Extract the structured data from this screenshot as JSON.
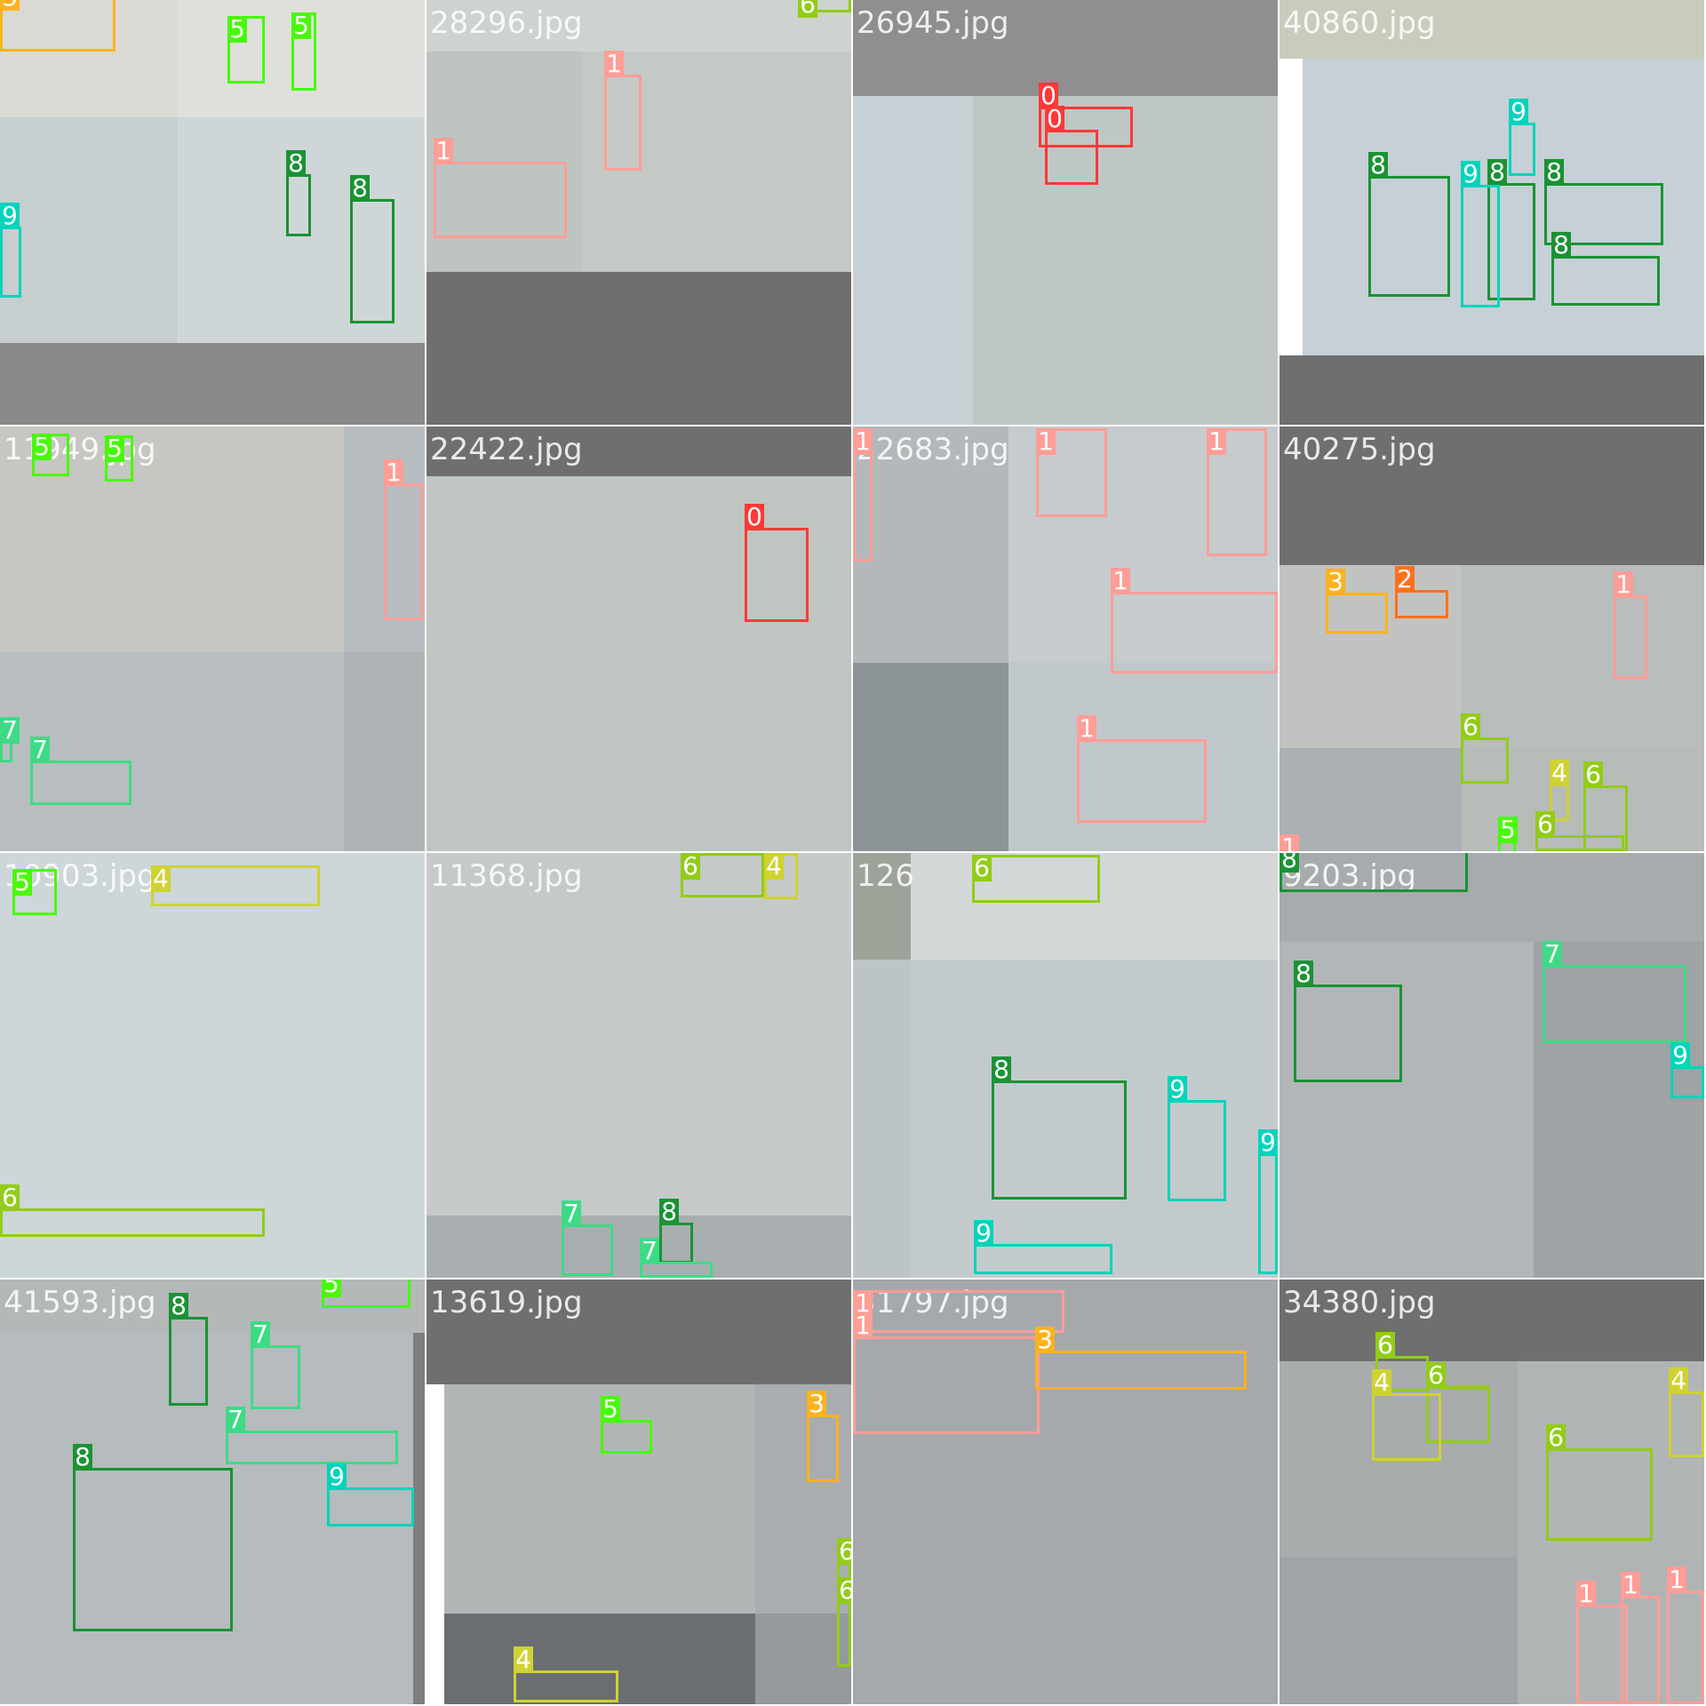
{
  "mosaic": {
    "class_colors": {
      "0": "#ff3838",
      "1": "#ff9d97",
      "2": "#ff701f",
      "3": "#ffb21d",
      "4": "#cfd231",
      "5": "#48f90a",
      "6": "#92cc17",
      "7": "#3ddb86",
      "8": "#1a9334",
      "9": "#00d4bb"
    },
    "tiles": [
      {
        "filename": "",
        "labels": [
          "3",
          "5",
          "5",
          "9",
          "8",
          "8"
        ]
      },
      {
        "filename": "28296.jpg",
        "labels": [
          "6",
          "1",
          "1"
        ]
      },
      {
        "filename": "26945.jpg",
        "labels": [
          "0",
          "0"
        ]
      },
      {
        "filename": "40860.jpg",
        "labels": [
          "9",
          "8",
          "8",
          "8",
          "9",
          "8"
        ]
      },
      {
        "filename": "11949.jpg",
        "labels": [
          "5",
          "5",
          "1",
          "7",
          "7"
        ]
      },
      {
        "filename": "22422.jpg",
        "labels": [
          "0"
        ]
      },
      {
        "filename": "22683.jpg",
        "labels": [
          "1",
          "1",
          "1",
          "1",
          "1"
        ]
      },
      {
        "filename": "40275.jpg",
        "labels": [
          "3",
          "2",
          "1",
          "6",
          "4",
          "6",
          "5",
          "6",
          "1"
        ]
      },
      {
        "filename": "10903.jpg",
        "labels": [
          "5",
          "4",
          "6"
        ]
      },
      {
        "filename": "11368.jpg",
        "labels": [
          "6",
          "4",
          "7",
          "8",
          "7"
        ]
      },
      {
        "filename": "126",
        "labels": [
          "6",
          "8",
          "9",
          "9",
          "9"
        ]
      },
      {
        "filename": "9203.jpg",
        "labels": [
          "8",
          "8",
          "7",
          "9"
        ]
      },
      {
        "filename": "41593.jpg",
        "labels": [
          "5",
          "8",
          "7",
          "7",
          "8",
          "9"
        ]
      },
      {
        "filename": "13619.jpg",
        "labels": [
          "3",
          "5",
          "4",
          "6",
          "6"
        ]
      },
      {
        "filename": "31797.jpg",
        "labels": [
          "1",
          "1",
          "3"
        ]
      },
      {
        "filename": "34380.jpg",
        "labels": [
          "6",
          "6",
          "4",
          "4",
          "6",
          "1",
          "1",
          "1"
        ]
      }
    ]
  }
}
